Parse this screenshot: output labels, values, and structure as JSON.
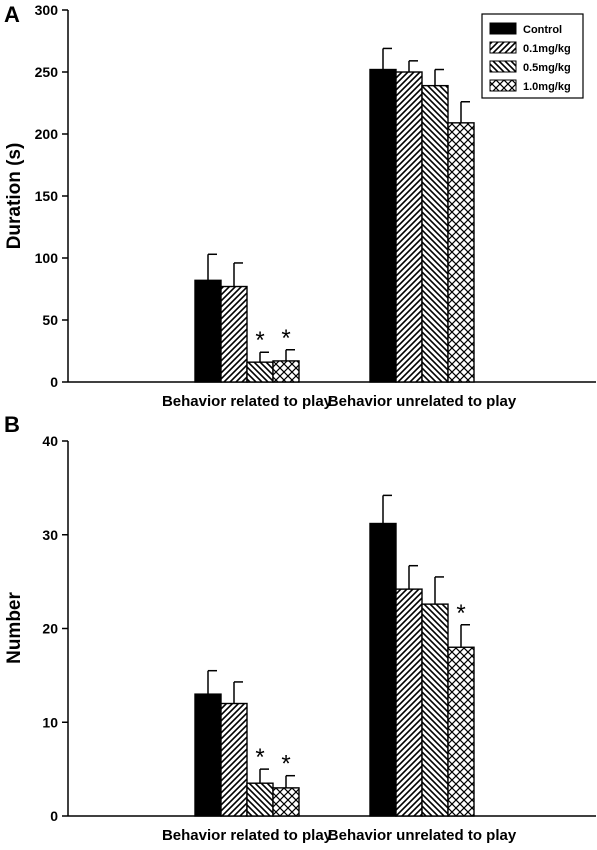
{
  "chart_data": [
    {
      "type": "bar",
      "panel": "A",
      "ylabel": "Duration (s)",
      "ylim": [
        0,
        300
      ],
      "yticks": [
        0,
        50,
        100,
        150,
        200,
        250,
        300
      ],
      "categories": [
        "Behavior related to play",
        "Behavior unrelated to play"
      ],
      "series": [
        {
          "name": "Control",
          "pattern": "solid",
          "values": [
            82,
            252
          ],
          "errors": [
            21,
            17
          ],
          "significant": [
            false,
            false
          ]
        },
        {
          "name": "0.1mg/kg",
          "pattern": "diag-ne",
          "values": [
            77,
            250
          ],
          "errors": [
            19,
            9
          ],
          "significant": [
            false,
            false
          ]
        },
        {
          "name": "0.5mg/kg",
          "pattern": "diag-nw",
          "values": [
            16,
            239
          ],
          "errors": [
            8,
            13
          ],
          "significant": [
            true,
            false
          ]
        },
        {
          "name": "1.0mg/kg",
          "pattern": "cross",
          "values": [
            17,
            209
          ],
          "errors": [
            9,
            17
          ],
          "significant": [
            true,
            false
          ]
        }
      ],
      "significance_marker": "*",
      "legend_position": "top-right",
      "grid": false
    },
    {
      "type": "bar",
      "panel": "B",
      "ylabel": "Number",
      "ylim": [
        0,
        40
      ],
      "yticks": [
        0,
        10,
        20,
        30,
        40
      ],
      "categories": [
        "Behavior related to play",
        "Behavior unrelated to play"
      ],
      "series": [
        {
          "name": "Control",
          "pattern": "solid",
          "values": [
            13,
            31.2
          ],
          "errors": [
            2.5,
            3.0
          ],
          "significant": [
            false,
            false
          ]
        },
        {
          "name": "0.1mg/kg",
          "pattern": "diag-ne",
          "values": [
            12,
            24.2
          ],
          "errors": [
            2.3,
            2.5
          ],
          "significant": [
            false,
            false
          ]
        },
        {
          "name": "0.5mg/kg",
          "pattern": "diag-nw",
          "values": [
            3.5,
            22.6
          ],
          "errors": [
            1.5,
            2.9
          ],
          "significant": [
            true,
            false
          ]
        },
        {
          "name": "1.0mg/kg",
          "pattern": "cross",
          "values": [
            3.0,
            18.0
          ],
          "errors": [
            1.3,
            2.4
          ],
          "significant": [
            true,
            true
          ]
        }
      ],
      "significance_marker": "*",
      "legend_position": "none",
      "grid": false
    }
  ]
}
